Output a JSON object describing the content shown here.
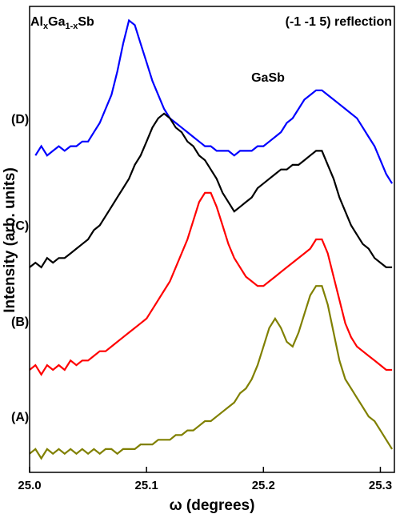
{
  "chart_data": {
    "type": "line",
    "x_label": "ω (degrees)",
    "y_label": "Intensity (arb. units)",
    "annotations": [
      {
        "parts": [
          "Al",
          "x",
          "Ga",
          "1-x",
          "Sb"
        ]
      },
      {
        "parts": [
          "(-1 -1 5) reflection"
        ]
      },
      {
        "parts": [
          "GaSb"
        ]
      }
    ],
    "xlim": [
      25.0,
      25.312
    ],
    "ylim": [
      0,
      100
    ],
    "xticks": [
      {
        "value": 25.0,
        "label": "25.0"
      },
      25.1,
      25.2,
      25.3
    ],
    "x": [
      25.0,
      25.005,
      25.01,
      25.015,
      25.02,
      25.025,
      25.03,
      25.035,
      25.04,
      25.045,
      25.05,
      25.055,
      25.06,
      25.065,
      25.07,
      25.075,
      25.08,
      25.085,
      25.09,
      25.095,
      25.1,
      25.105,
      25.11,
      25.115,
      25.12,
      25.125,
      25.13,
      25.135,
      25.14,
      25.145,
      25.15,
      25.155,
      25.16,
      25.165,
      25.17,
      25.175,
      25.18,
      25.185,
      25.19,
      25.195,
      25.2,
      25.205,
      25.21,
      25.215,
      25.22,
      25.225,
      25.23,
      25.235,
      25.24,
      25.245,
      25.25,
      25.255,
      25.26,
      25.265,
      25.27,
      25.275,
      25.28,
      25.285,
      25.29,
      25.295,
      25.3,
      25.305,
      25.31
    ],
    "series": [
      {
        "name": "(D)",
        "color": "#0000ff",
        "values": [
          null,
          68,
          70,
          68,
          69,
          70,
          69,
          70,
          70,
          71,
          71,
          73,
          75,
          78,
          81,
          86,
          92,
          97,
          96,
          92,
          88,
          84,
          81,
          78,
          76,
          75,
          74,
          73,
          72,
          71,
          70,
          70,
          69,
          69,
          69,
          68,
          69,
          69,
          69,
          70,
          70,
          71,
          72,
          73,
          75,
          76,
          78,
          80,
          81,
          82,
          82,
          81,
          80,
          79,
          78,
          77,
          76,
          74,
          72,
          70,
          67,
          64,
          62
        ]
      },
      {
        "name": "(C)",
        "color": "#000000",
        "values": [
          44,
          45,
          44,
          46,
          45,
          46,
          46,
          47,
          48,
          49,
          50,
          52,
          53,
          55,
          57,
          59,
          61,
          63,
          66,
          68,
          71,
          74,
          76,
          77,
          76,
          74,
          73,
          71,
          70,
          68,
          67,
          65,
          63,
          60,
          58,
          56,
          57,
          58,
          59,
          61,
          62,
          63,
          64,
          65,
          65,
          66,
          66,
          67,
          68,
          69,
          69,
          66,
          63,
          59,
          56,
          53,
          51,
          49,
          48,
          46,
          45,
          44,
          44
        ]
      },
      {
        "name": "(B)",
        "color": "#ff0000",
        "values": [
          22,
          23,
          21,
          23,
          22,
          23,
          22,
          24,
          23,
          24,
          24,
          25,
          26,
          26,
          27,
          28,
          29,
          30,
          31,
          32,
          33,
          35,
          37,
          39,
          41,
          44,
          47,
          50,
          54,
          58,
          60,
          60,
          57,
          53,
          49,
          46,
          44,
          42,
          41,
          40,
          40,
          41,
          42,
          43,
          44,
          45,
          46,
          47,
          48,
          50,
          50,
          47,
          42,
          37,
          32,
          29,
          27,
          26,
          25,
          24,
          23,
          22,
          22
        ]
      },
      {
        "name": "(A)",
        "color": "#808000",
        "values": [
          4,
          5,
          3,
          5,
          4,
          5,
          4,
          5,
          4,
          5,
          4,
          5,
          4,
          5,
          5,
          4,
          5,
          5,
          5,
          6,
          6,
          6,
          7,
          7,
          7,
          8,
          8,
          9,
          9,
          10,
          11,
          11,
          12,
          13,
          14,
          15,
          17,
          18,
          20,
          23,
          27,
          31,
          33,
          31,
          28,
          27,
          30,
          34,
          38,
          40,
          40,
          36,
          30,
          24,
          20,
          18,
          16,
          14,
          12,
          11,
          9,
          7,
          5
        ]
      }
    ]
  }
}
